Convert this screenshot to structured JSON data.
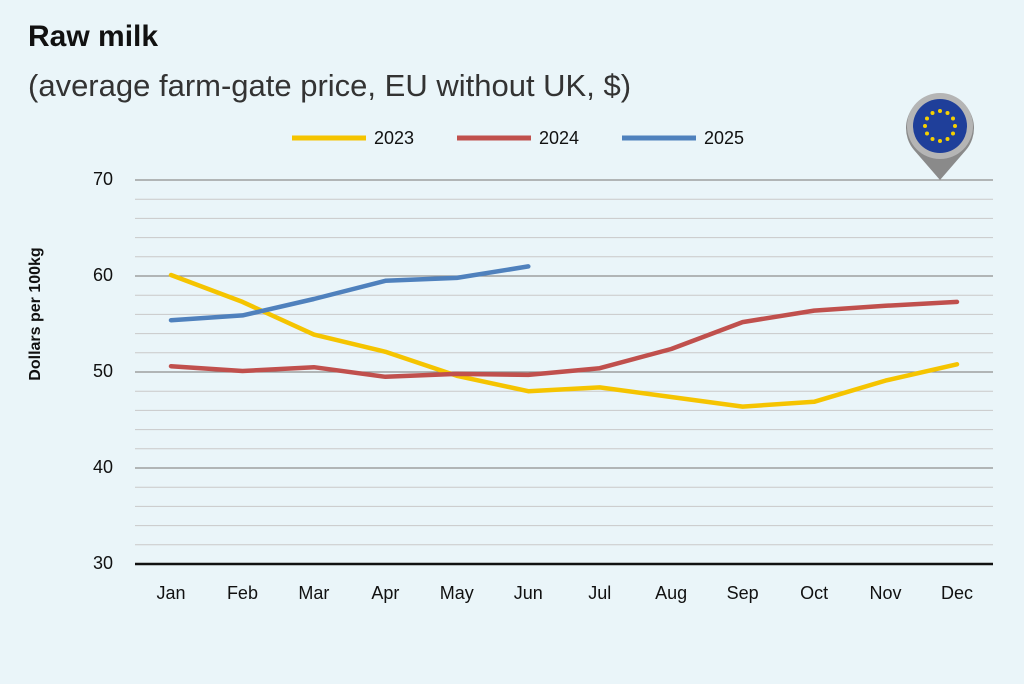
{
  "chart_data": {
    "type": "line",
    "title": "Raw milk",
    "subtitle": "(average farm-gate price, EU without UK, $)",
    "y_label": "Dollars per 100kg",
    "categories": [
      "Jan",
      "Feb",
      "Mar",
      "Apr",
      "May",
      "Jun",
      "Jul",
      "Aug",
      "Sep",
      "Oct",
      "Nov",
      "Dec"
    ],
    "series": [
      {
        "name": "2023",
        "color": "#f5c400",
        "values": [
          60.1,
          57.3,
          53.9,
          52.1,
          49.6,
          48.0,
          48.4,
          47.4,
          46.4,
          46.9,
          49.1,
          50.8
        ]
      },
      {
        "name": "2024",
        "color": "#c0504d",
        "values": [
          50.6,
          50.1,
          50.5,
          49.5,
          49.8,
          49.7,
          50.4,
          52.4,
          55.2,
          56.4,
          56.9,
          57.3
        ]
      },
      {
        "name": "2025",
        "color": "#4f81bd",
        "values": [
          55.4,
          55.9,
          57.6,
          59.5,
          59.8,
          61.0,
          null,
          null,
          null,
          null,
          null,
          null
        ]
      }
    ],
    "ylim": [
      30,
      70
    ],
    "yticks": [
      30,
      40,
      50,
      60,
      70
    ],
    "minor_yticks": [
      32,
      34,
      36,
      38,
      42,
      44,
      46,
      48,
      52,
      54,
      56,
      58,
      62,
      64,
      66,
      68
    ],
    "grid": true,
    "legend": "top"
  }
}
